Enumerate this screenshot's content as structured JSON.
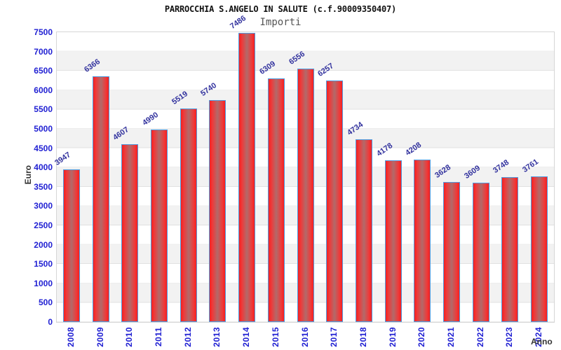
{
  "chart_data": {
    "type": "bar",
    "title": "PARROCCHIA S.ANGELO IN SALUTE (c.f.90009350407)",
    "subtitle": "Importi",
    "xlabel": "Anno",
    "ylabel": "Euro",
    "categories": [
      "2008",
      "2009",
      "2010",
      "2011",
      "2012",
      "2013",
      "2014",
      "2015",
      "2016",
      "2017",
      "2018",
      "2019",
      "2020",
      "2021",
      "2022",
      "2023",
      "2024"
    ],
    "values": [
      3947,
      6366,
      4607,
      4990,
      5519,
      5740,
      7486,
      6309,
      6556,
      6257,
      4734,
      4178,
      4208,
      3628,
      3609,
      3748,
      3761
    ],
    "ylim": [
      0,
      7500
    ],
    "ytick_step": 500,
    "yticks": [
      0,
      500,
      1000,
      1500,
      2000,
      2500,
      3000,
      3500,
      4000,
      4500,
      5000,
      5500,
      6000,
      6500,
      7000,
      7500
    ],
    "grid": "horizontal-bands-alternating",
    "legend": "none",
    "style": {
      "bar_fill_edge": "#f52020",
      "bar_fill_mid": "#b26a6a",
      "bar_border": "#4f9ce0",
      "tick_label_color": "#2121d3",
      "value_label_color": "#32329e",
      "band_color": "#f2f2f2",
      "plot_border_color": "#d6d6d6",
      "title_color": "#111111",
      "subtitle_color": "#555555",
      "axis_title_color": "#333333"
    }
  }
}
